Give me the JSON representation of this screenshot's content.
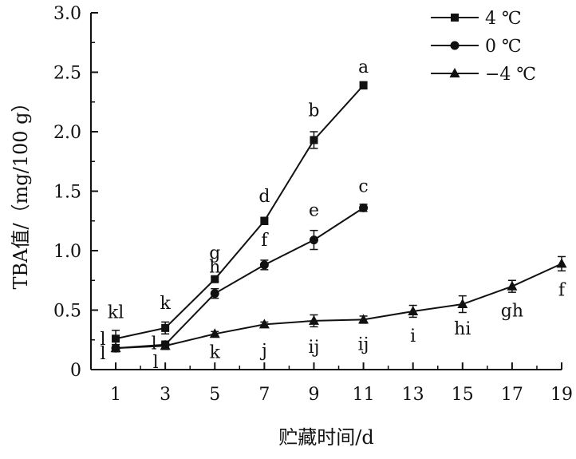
{
  "chart_data": {
    "type": "line",
    "xlabel": "贮藏时间/d",
    "ylabel": "TBA值/（mg/100 g）",
    "xlim": [
      0,
      19
    ],
    "ylim": [
      0,
      3.0
    ],
    "xticks": [
      1,
      3,
      5,
      7,
      9,
      11,
      13,
      15,
      17,
      19
    ],
    "yticks": [
      "0",
      "0.5",
      "1.0",
      "1.5",
      "2.0",
      "2.5",
      "3.0"
    ],
    "legend_position": "top-right",
    "series": [
      {
        "name": "4 ℃",
        "marker": "square",
        "x": [
          1,
          3,
          5,
          7,
          9,
          11
        ],
        "y": [
          0.26,
          0.35,
          0.76,
          1.25,
          1.93,
          2.39
        ],
        "error": [
          0.07,
          0.05,
          0.02,
          0.03,
          0.07,
          0.03
        ],
        "labels": [
          "kl",
          "k",
          "g",
          "d",
          "b",
          "a"
        ]
      },
      {
        "name": "0 ℃",
        "marker": "circle",
        "x": [
          1,
          3,
          5,
          7,
          9,
          11
        ],
        "y": [
          0.18,
          0.21,
          0.64,
          0.88,
          1.09,
          1.36
        ],
        "error": [
          0.03,
          0.03,
          0.04,
          0.04,
          0.08,
          0.03
        ],
        "labels": [
          "l",
          "l",
          "h",
          "f",
          "e",
          "c"
        ]
      },
      {
        "name": "−4 ℃",
        "marker": "triangle",
        "x": [
          1,
          3,
          5,
          7,
          9,
          11,
          13,
          15,
          17,
          19
        ],
        "y": [
          0.18,
          0.2,
          0.3,
          0.38,
          0.41,
          0.42,
          0.49,
          0.55,
          0.7,
          0.89
        ],
        "error": [
          0.03,
          0.03,
          0.02,
          0.02,
          0.05,
          0.03,
          0.05,
          0.07,
          0.05,
          0.06
        ],
        "labels": [
          "l",
          "l",
          "k",
          "j",
          "ij",
          "ij",
          "i",
          "hi",
          "gh",
          "f"
        ]
      }
    ]
  }
}
